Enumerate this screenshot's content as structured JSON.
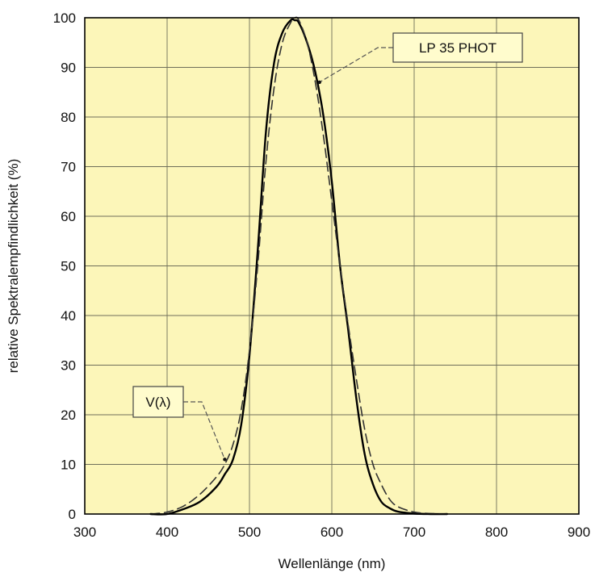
{
  "chart_data": {
    "type": "line",
    "title": "",
    "xlabel": "Wellenlänge (nm)",
    "ylabel": "relative Spektralempfindlichkeit (%)",
    "xlim": [
      300,
      900
    ],
    "ylim": [
      0,
      100
    ],
    "x_ticks": [
      300,
      400,
      500,
      600,
      700,
      800,
      900
    ],
    "y_ticks": [
      0,
      10,
      20,
      30,
      40,
      50,
      60,
      70,
      80,
      90,
      100
    ],
    "grid": true,
    "background_color": "#fcf6b9",
    "series": [
      {
        "name": "LP 35 PHOT",
        "style": "solid",
        "color": "#000000",
        "x": [
          380,
          400,
          420,
          440,
          460,
          470,
          480,
          490,
          500,
          510,
          520,
          530,
          540,
          550,
          555,
          560,
          570,
          580,
          590,
          600,
          610,
          620,
          630,
          640,
          650,
          660,
          670,
          680,
          700,
          720,
          740
        ],
        "y": [
          0,
          0,
          1,
          2.5,
          5.5,
          8,
          11,
          18,
          32,
          53,
          77,
          91,
          97,
          99.5,
          99.5,
          99,
          95,
          89,
          80,
          67,
          50,
          37,
          23,
          12,
          6,
          2.5,
          1.2,
          0.5,
          0.1,
          0,
          0
        ]
      },
      {
        "name": "V(λ)",
        "style": "dashed",
        "color": "#333333",
        "x": [
          380,
          400,
          420,
          440,
          460,
          470,
          480,
          490,
          500,
          510,
          520,
          530,
          540,
          550,
          555,
          560,
          570,
          580,
          590,
          600,
          610,
          620,
          630,
          640,
          650,
          660,
          670,
          680,
          700,
          720,
          740
        ],
        "y": [
          0,
          0.4,
          1.6,
          4,
          7.5,
          10,
          14,
          21,
          33,
          50,
          71,
          86,
          95,
          99,
          100,
          99.5,
          95,
          87,
          76,
          63,
          50,
          38,
          27,
          17,
          10,
          6,
          3,
          1.5,
          0.4,
          0.1,
          0
        ]
      }
    ],
    "annotations": [
      {
        "text": "LP 35 PHOT",
        "target_series": "LP 35 PHOT",
        "target_x": 585,
        "target_y": 87
      },
      {
        "text": "V(λ)",
        "target_series": "V(λ)",
        "target_x": 470,
        "target_y": 11
      }
    ]
  }
}
